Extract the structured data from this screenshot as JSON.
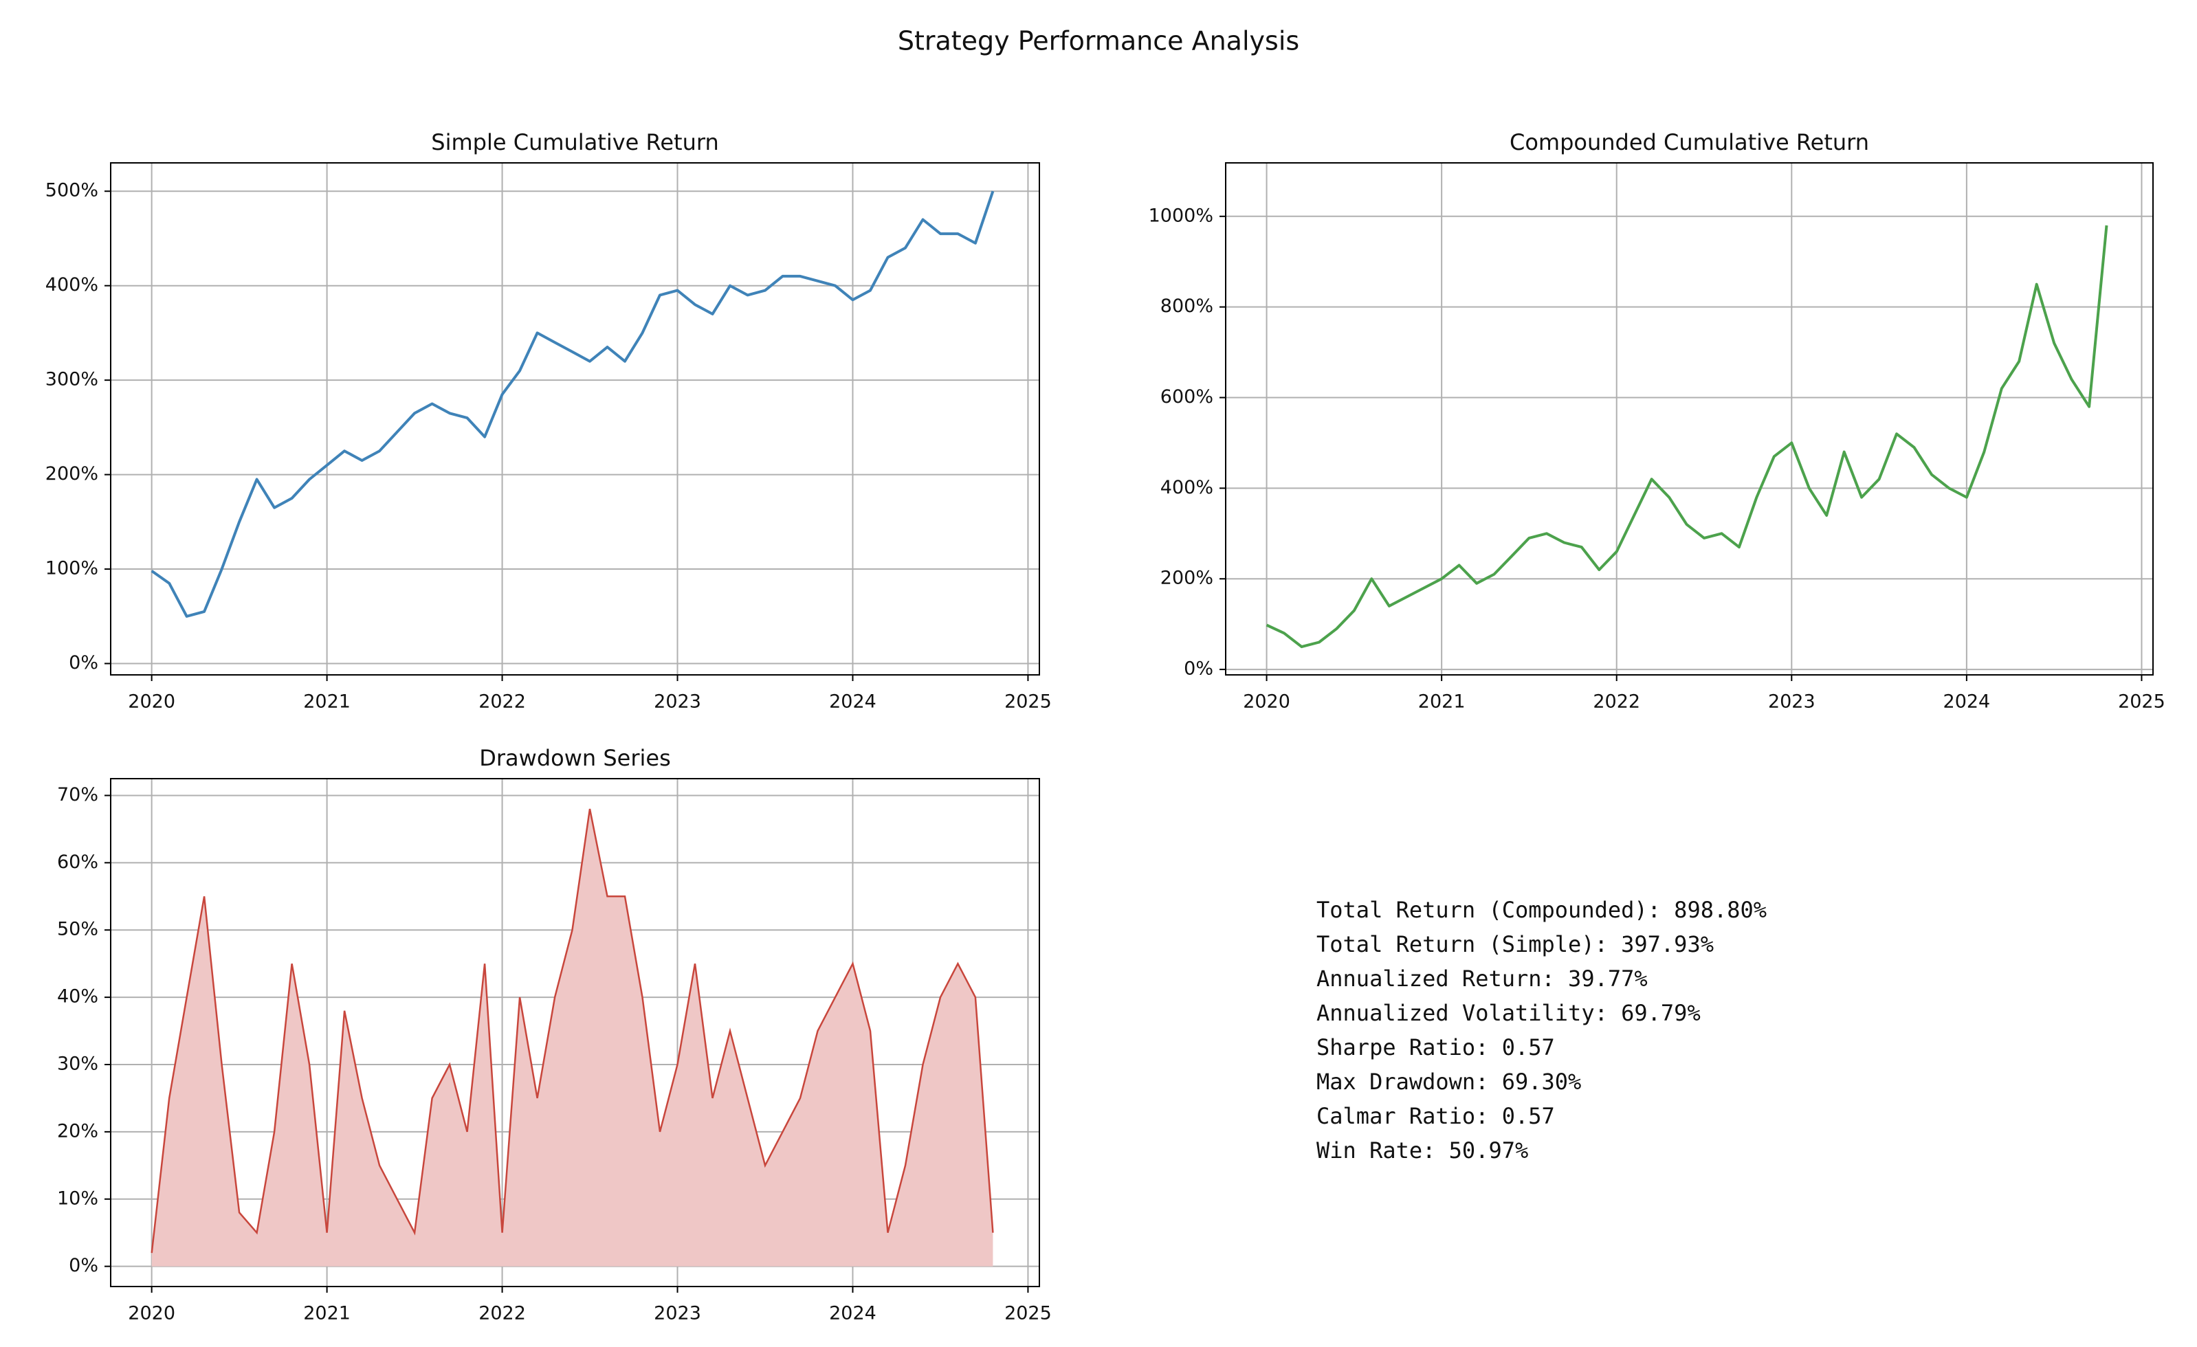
{
  "title": "Strategy Performance Analysis",
  "stats": [
    "Total Return (Compounded): 898.80%",
    "Total Return (Simple): 397.93%",
    "Annualized Return: 39.77%",
    "Annualized Volatility: 69.79%",
    "Sharpe Ratio: 0.57",
    "Max Drawdown: 69.30%",
    "Calmar Ratio: 0.57",
    "Win Rate: 50.97%"
  ],
  "chart_data": [
    {
      "type": "line",
      "title": "Simple Cumulative Return",
      "color": "#3f83b8",
      "grid": true,
      "xlim": [
        2019.766,
        2025.065
      ],
      "xticks": [
        2020,
        2021,
        2022,
        2023,
        2024,
        2025
      ],
      "ylim": [
        -12,
        530
      ],
      "yticks": [
        {
          "value": 0,
          "label": "0%"
        },
        {
          "value": 100,
          "label": "100%"
        },
        {
          "value": 200,
          "label": "200%"
        },
        {
          "value": 300,
          "label": "300%"
        },
        {
          "value": 400,
          "label": "400%"
        },
        {
          "value": 500,
          "label": "500%"
        }
      ],
      "x": [
        2020.0,
        2020.1,
        2020.2,
        2020.3,
        2020.4,
        2020.5,
        2020.6,
        2020.7,
        2020.8,
        2020.9,
        2021.0,
        2021.1,
        2021.2,
        2021.3,
        2021.4,
        2021.5,
        2021.6,
        2021.7,
        2021.8,
        2021.9,
        2022.0,
        2022.1,
        2022.2,
        2022.3,
        2022.4,
        2022.5,
        2022.6,
        2022.7,
        2022.8,
        2022.9,
        2023.0,
        2023.1,
        2023.2,
        2023.3,
        2023.4,
        2023.5,
        2023.6,
        2023.7,
        2023.8,
        2023.9,
        2024.0,
        2024.1,
        2024.2,
        2024.3,
        2024.4,
        2024.5,
        2024.6,
        2024.7,
        2024.8
      ],
      "values": [
        98,
        85,
        50,
        55,
        100,
        150,
        195,
        165,
        175,
        195,
        210,
        225,
        215,
        225,
        245,
        265,
        275,
        265,
        260,
        240,
        285,
        310,
        350,
        340,
        330,
        320,
        335,
        320,
        350,
        390,
        395,
        380,
        370,
        400,
        390,
        395,
        410,
        410,
        405,
        400,
        385,
        395,
        430,
        440,
        470,
        455,
        455,
        445,
        500
      ]
    },
    {
      "type": "line",
      "title": "Compounded Cumulative Return",
      "color": "#4ca24c",
      "grid": true,
      "xlim": [
        2019.766,
        2025.065
      ],
      "xticks": [
        2020,
        2021,
        2022,
        2023,
        2024,
        2025
      ],
      "ylim": [
        -12,
        1118
      ],
      "yticks": [
        {
          "value": 0,
          "label": "0%"
        },
        {
          "value": 200,
          "label": "200%"
        },
        {
          "value": 400,
          "label": "400%"
        },
        {
          "value": 600,
          "label": "600%"
        },
        {
          "value": 800,
          "label": "800%"
        },
        {
          "value": 1000,
          "label": "1000%"
        }
      ],
      "x": [
        2020.0,
        2020.1,
        2020.2,
        2020.3,
        2020.4,
        2020.5,
        2020.6,
        2020.7,
        2020.8,
        2020.9,
        2021.0,
        2021.1,
        2021.2,
        2021.3,
        2021.4,
        2021.5,
        2021.6,
        2021.7,
        2021.8,
        2021.9,
        2022.0,
        2022.1,
        2022.2,
        2022.3,
        2022.4,
        2022.5,
        2022.6,
        2022.7,
        2022.8,
        2022.9,
        2023.0,
        2023.1,
        2023.2,
        2023.3,
        2023.4,
        2023.5,
        2023.6,
        2023.7,
        2023.8,
        2023.9,
        2024.0,
        2024.1,
        2024.2,
        2024.3,
        2024.4,
        2024.5,
        2024.6,
        2024.7,
        2024.8
      ],
      "values": [
        98,
        80,
        50,
        60,
        90,
        130,
        200,
        140,
        160,
        180,
        200,
        230,
        190,
        210,
        250,
        290,
        300,
        280,
        270,
        220,
        260,
        340,
        420,
        380,
        320,
        290,
        300,
        270,
        380,
        470,
        500,
        400,
        340,
        480,
        380,
        420,
        520,
        490,
        430,
        400,
        380,
        480,
        620,
        680,
        850,
        720,
        640,
        580,
        980
      ]
    },
    {
      "type": "area",
      "title": "Drawdown Series",
      "color": "#c8463c",
      "fill": "#efc7c6",
      "grid": true,
      "xlim": [
        2019.766,
        2025.065
      ],
      "xticks": [
        2020,
        2021,
        2022,
        2023,
        2024,
        2025
      ],
      "ylim": [
        -3,
        72.5
      ],
      "yticks": [
        {
          "value": 0,
          "label": "0%"
        },
        {
          "value": 10,
          "label": "10%"
        },
        {
          "value": 20,
          "label": "20%"
        },
        {
          "value": 30,
          "label": "30%"
        },
        {
          "value": 40,
          "label": "40%"
        },
        {
          "value": 50,
          "label": "50%"
        },
        {
          "value": 60,
          "label": "60%"
        },
        {
          "value": 70,
          "label": "70%"
        }
      ],
      "x": [
        2020.0,
        2020.1,
        2020.2,
        2020.3,
        2020.4,
        2020.5,
        2020.6,
        2020.7,
        2020.8,
        2020.9,
        2021.0,
        2021.1,
        2021.2,
        2021.3,
        2021.4,
        2021.5,
        2021.6,
        2021.7,
        2021.8,
        2021.9,
        2022.0,
        2022.1,
        2022.2,
        2022.3,
        2022.4,
        2022.5,
        2022.6,
        2022.7,
        2022.8,
        2022.9,
        2023.0,
        2023.1,
        2023.2,
        2023.3,
        2023.4,
        2023.5,
        2023.6,
        2023.7,
        2023.8,
        2023.9,
        2024.0,
        2024.1,
        2024.2,
        2024.3,
        2024.4,
        2024.5,
        2024.6,
        2024.7,
        2024.8
      ],
      "values": [
        2,
        25,
        40,
        55,
        30,
        8,
        5,
        20,
        45,
        30,
        5,
        38,
        25,
        15,
        10,
        5,
        25,
        30,
        20,
        45,
        5,
        40,
        25,
        40,
        50,
        68,
        55,
        55,
        40,
        20,
        30,
        45,
        25,
        35,
        25,
        15,
        20,
        25,
        35,
        40,
        45,
        35,
        5,
        15,
        30,
        40,
        45,
        40,
        5
      ]
    }
  ]
}
